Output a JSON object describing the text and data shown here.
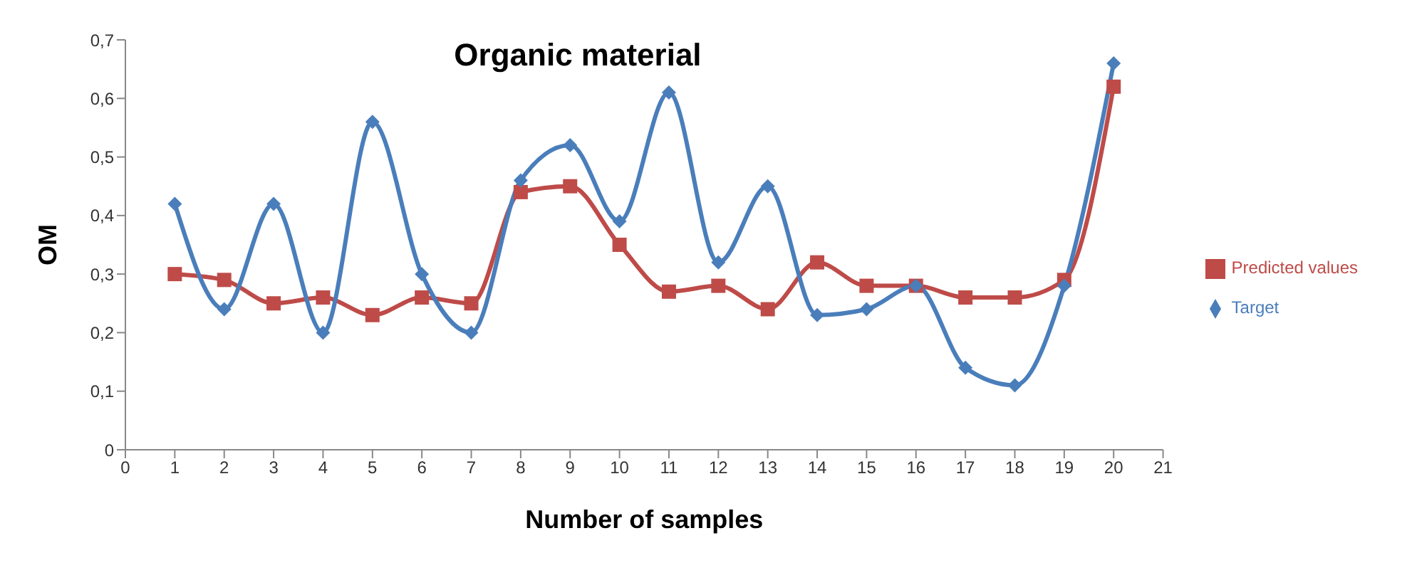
{
  "chart_data": {
    "type": "line",
    "title": "Organic material",
    "xlabel": "Number of samples",
    "ylabel": "OM",
    "x": [
      1,
      2,
      3,
      4,
      5,
      6,
      7,
      8,
      9,
      10,
      11,
      12,
      13,
      14,
      15,
      16,
      17,
      18,
      19,
      20
    ],
    "series": [
      {
        "name": "Target",
        "color": "#4a7ebb",
        "marker": "diamond",
        "values": [
          0.42,
          0.24,
          0.42,
          0.2,
          0.56,
          0.3,
          0.2,
          0.46,
          0.52,
          0.39,
          0.61,
          0.32,
          0.45,
          0.23,
          0.24,
          0.28,
          0.14,
          0.11,
          0.28,
          0.66
        ]
      },
      {
        "name": "Predicted values",
        "color": "#be4b48",
        "marker": "square",
        "values": [
          0.3,
          0.29,
          0.25,
          0.26,
          0.23,
          0.26,
          0.25,
          0.44,
          0.45,
          0.35,
          0.27,
          0.28,
          0.24,
          0.32,
          0.28,
          0.28,
          0.26,
          0.26,
          0.29,
          0.62
        ]
      }
    ],
    "xlim": [
      0,
      21
    ],
    "xticks": [
      0,
      1,
      2,
      3,
      4,
      5,
      6,
      7,
      8,
      9,
      10,
      11,
      12,
      13,
      14,
      15,
      16,
      17,
      18,
      19,
      20,
      21
    ],
    "ylim": [
      0,
      0.7
    ],
    "yticks": [
      0,
      {
        "value": 0.1,
        "label": "0,1"
      },
      {
        "value": 0.2,
        "label": "0,2"
      },
      {
        "value": 0.3,
        "label": "0,3"
      },
      {
        "value": 0.4,
        "label": "0,4"
      },
      {
        "value": 0.5,
        "label": "0,5"
      },
      {
        "value": 0.6,
        "label": "0,6"
      },
      {
        "value": 0.7,
        "label": "0,7"
      }
    ],
    "grid": false,
    "legend": "right",
    "line_style": "solid"
  }
}
